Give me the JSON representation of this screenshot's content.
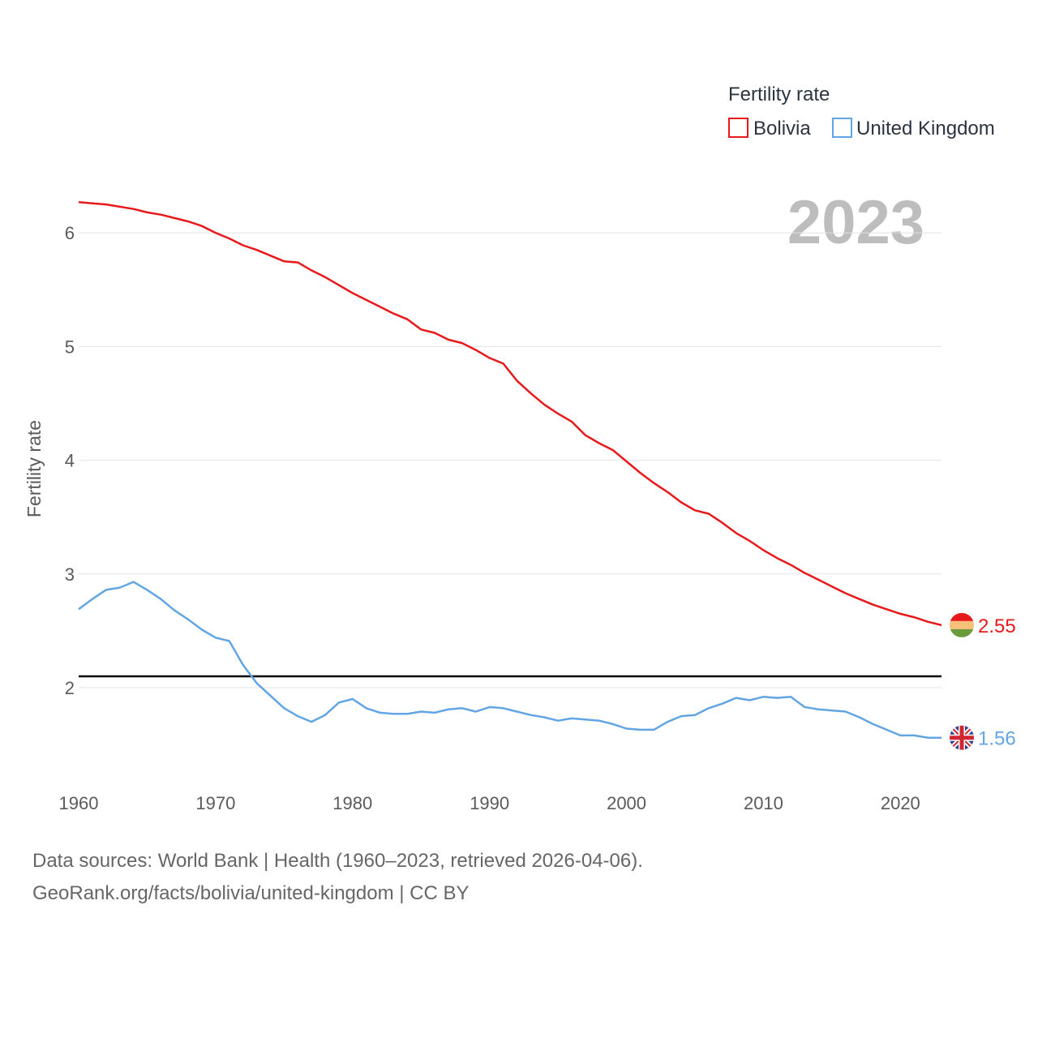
{
  "chart_data": {
    "type": "line",
    "y_axis_label": "Fertility rate",
    "year_display": "2023",
    "legend": {
      "title": "Fertility rate",
      "entries": [
        "Bolivia",
        "United Kingdom"
      ]
    },
    "x": [
      1960,
      1961,
      1962,
      1963,
      1964,
      1965,
      1966,
      1967,
      1968,
      1969,
      1970,
      1971,
      1972,
      1973,
      1974,
      1975,
      1976,
      1977,
      1978,
      1979,
      1980,
      1981,
      1982,
      1983,
      1984,
      1985,
      1986,
      1987,
      1988,
      1989,
      1990,
      1991,
      1992,
      1993,
      1994,
      1995,
      1996,
      1997,
      1998,
      1999,
      2000,
      2001,
      2002,
      2003,
      2004,
      2005,
      2006,
      2007,
      2008,
      2009,
      2010,
      2011,
      2012,
      2013,
      2014,
      2015,
      2016,
      2017,
      2018,
      2019,
      2020,
      2021,
      2022,
      2023
    ],
    "xlim": [
      1960,
      2023
    ],
    "ylim": [
      1.23,
      6.55
    ],
    "x_ticks": [
      "1960",
      "1970",
      "1980",
      "1990",
      "2000",
      "2010",
      "2020"
    ],
    "y_ticks": [
      "2",
      "3",
      "4",
      "5",
      "6"
    ],
    "reference_line": {
      "value": 2.1
    },
    "series": [
      {
        "name": "Bolivia",
        "color": "#e8191b",
        "end_label": "2.55",
        "flag_icon": "bolivia-flag-icon",
        "values": [
          6.27,
          6.26,
          6.25,
          6.23,
          6.21,
          6.18,
          6.16,
          6.13,
          6.1,
          6.06,
          6.0,
          5.95,
          5.89,
          5.85,
          5.8,
          5.75,
          5.74,
          5.67,
          5.61,
          5.54,
          5.47,
          5.41,
          5.35,
          5.29,
          5.24,
          5.15,
          5.12,
          5.06,
          5.03,
          4.97,
          4.9,
          4.85,
          4.7,
          4.59,
          4.49,
          4.41,
          4.34,
          4.22,
          4.15,
          4.09,
          3.99,
          3.89,
          3.8,
          3.72,
          3.63,
          3.56,
          3.53,
          3.45,
          3.36,
          3.29,
          3.21,
          3.14,
          3.08,
          3.01,
          2.95,
          2.89,
          2.83,
          2.78,
          2.73,
          2.69,
          2.65,
          2.62,
          2.58,
          2.55
        ]
      },
      {
        "name": "United Kingdom",
        "color": "#62a5e4",
        "end_label": "1.56",
        "flag_icon": "uk-flag-icon",
        "values": [
          2.69,
          2.78,
          2.86,
          2.88,
          2.93,
          2.86,
          2.78,
          2.68,
          2.6,
          2.51,
          2.44,
          2.41,
          2.2,
          2.04,
          1.93,
          1.82,
          1.75,
          1.7,
          1.76,
          1.87,
          1.9,
          1.82,
          1.78,
          1.77,
          1.77,
          1.79,
          1.78,
          1.81,
          1.82,
          1.79,
          1.83,
          1.82,
          1.79,
          1.76,
          1.74,
          1.71,
          1.73,
          1.72,
          1.71,
          1.68,
          1.64,
          1.63,
          1.63,
          1.7,
          1.75,
          1.76,
          1.82,
          1.86,
          1.91,
          1.89,
          1.92,
          1.91,
          1.92,
          1.83,
          1.81,
          1.8,
          1.79,
          1.74,
          1.68,
          1.63,
          1.58,
          1.58,
          1.56,
          1.56
        ]
      }
    ]
  },
  "footer": {
    "source_line": "Data sources: World Bank | Health (1960–2023, retrieved 2026-04-06).",
    "attribution_line": "GeoRank.org/facts/bolivia/united-kingdom | CC BY"
  }
}
